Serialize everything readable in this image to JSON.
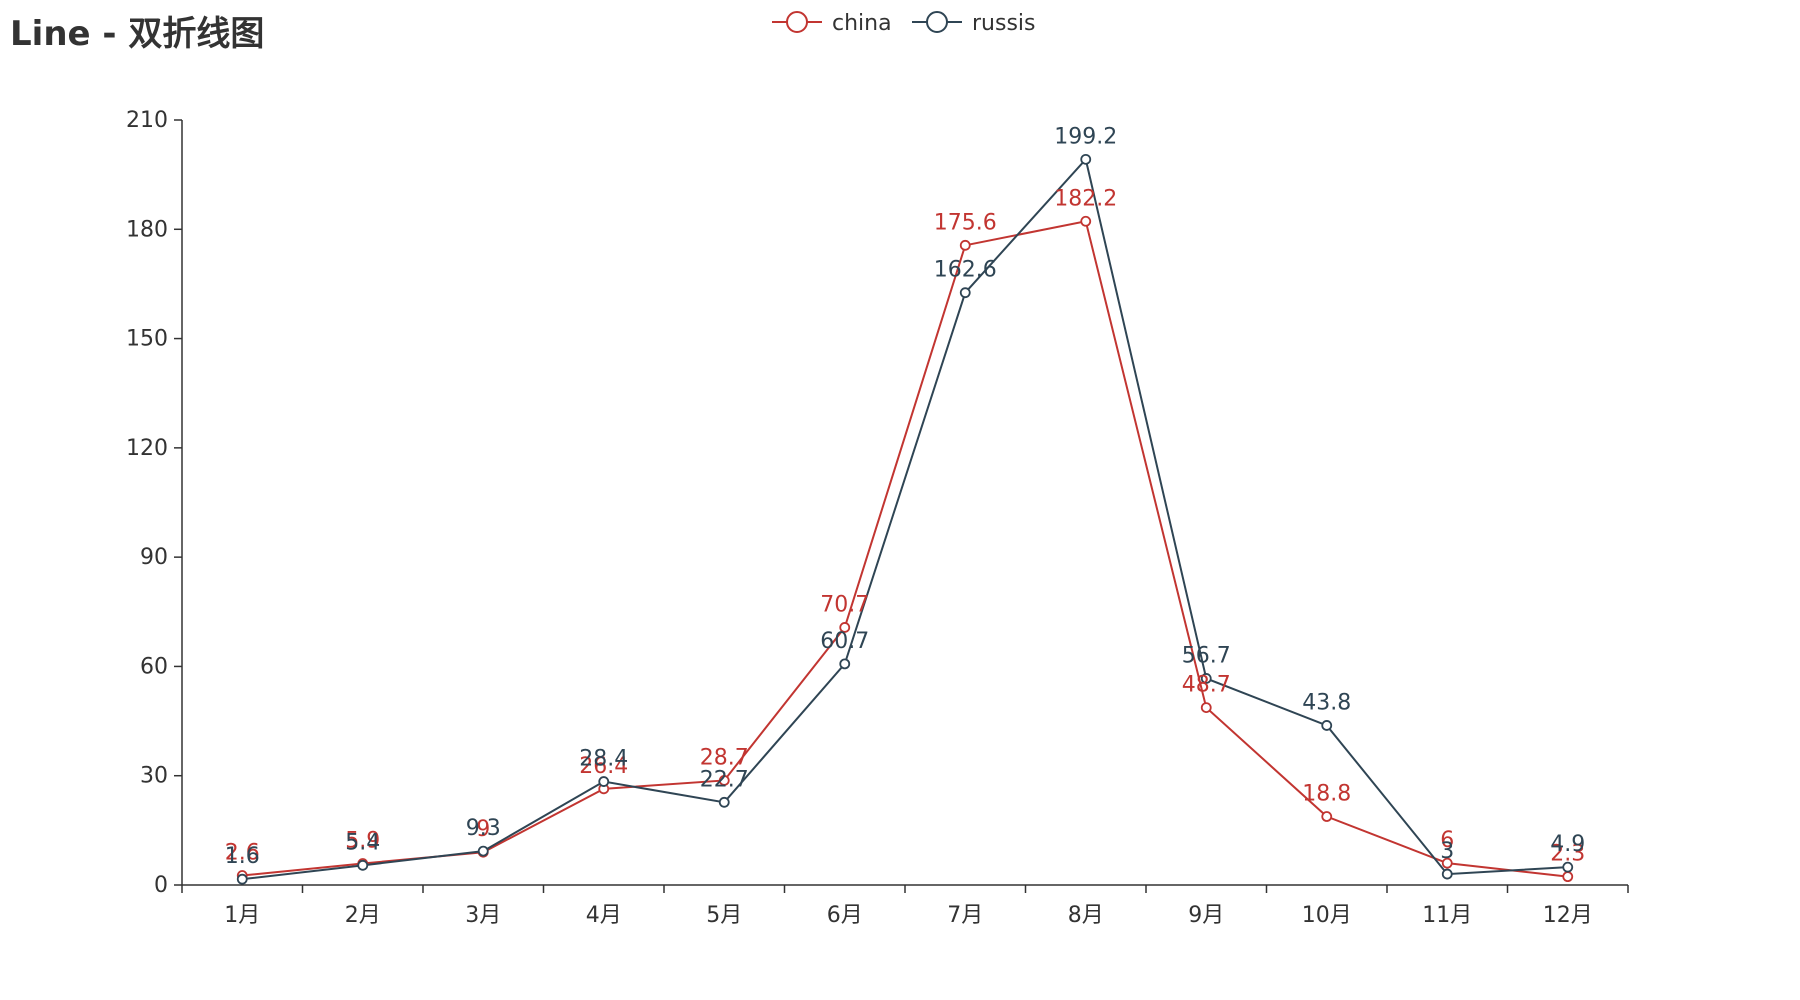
{
  "chart_data": {
    "type": "line",
    "title": "Line - 双折线图",
    "categories": [
      "1月",
      "2月",
      "3月",
      "4月",
      "5月",
      "6月",
      "7月",
      "8月",
      "9月",
      "10月",
      "11月",
      "12月"
    ],
    "series": [
      {
        "name": "china",
        "color": "#c23531",
        "values": [
          2.6,
          5.9,
          9.0,
          26.4,
          28.7,
          70.7,
          175.6,
          182.2,
          48.7,
          18.8,
          6.0,
          2.3
        ],
        "labels": [
          "2.6",
          "5.9",
          "9",
          "26.4",
          "28.7",
          "70.7",
          "175.6",
          "182.2",
          "48.7",
          "18.8",
          "6",
          "2.3"
        ]
      },
      {
        "name": "russis",
        "color": "#2f4554",
        "values": [
          1.6,
          5.4,
          9.3,
          28.4,
          22.7,
          60.7,
          162.6,
          199.2,
          56.7,
          43.8,
          3.0,
          4.9
        ],
        "labels": [
          "1.6",
          "5.4",
          "9.3",
          "28.4",
          "22.7",
          "60.7",
          "162.6",
          "199.2",
          "56.7",
          "43.8",
          "3",
          "4.9"
        ]
      }
    ],
    "yTicks": [
      "0",
      "30",
      "60",
      "90",
      "120",
      "150",
      "180",
      "210"
    ],
    "ylim": [
      0,
      210
    ],
    "xlabel": "",
    "ylabel": "",
    "legend_position": "top-center",
    "grid": false
  }
}
